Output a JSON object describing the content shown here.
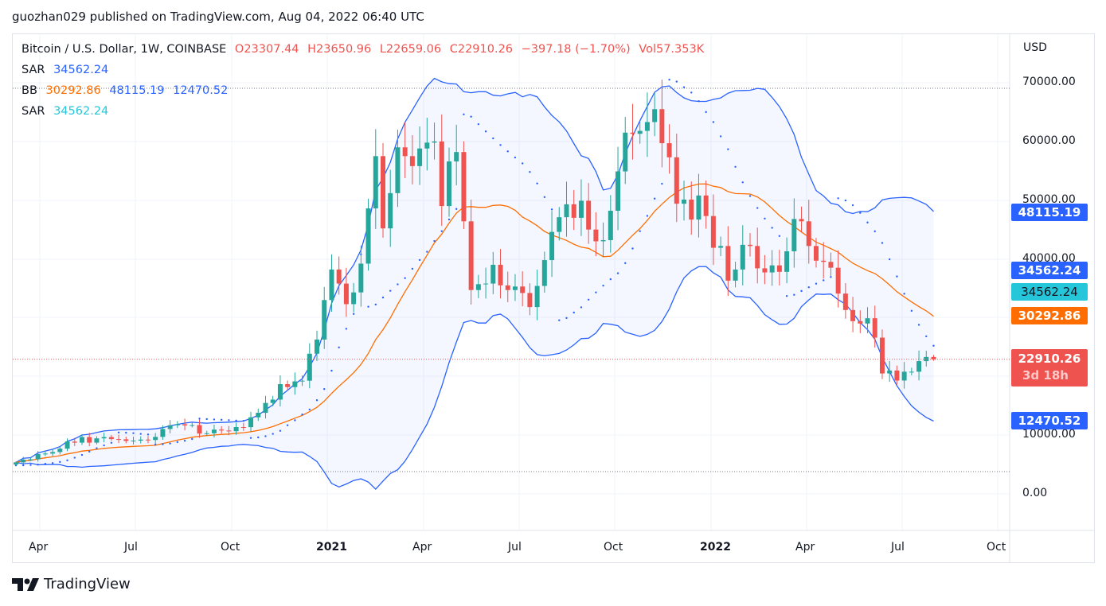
{
  "header": {
    "title": "guozhan029 published on TradingView.com, Aug 04, 2022 06:40 UTC"
  },
  "legend": {
    "symbol": "Bitcoin / U.S. Dollar, 1W, COINBASE",
    "open": "O23307.44",
    "high": "H23650.96",
    "low": "L22659.06",
    "close": "C22910.26",
    "change": "−397.18 (−1.70%)",
    "volume": "Vol57.353K",
    "sar1_label": "SAR",
    "sar1_value": "34562.24",
    "bb_label": "BB",
    "bb_basis": "30292.86",
    "bb_upper": "48115.19",
    "bb_lower": "12470.52",
    "sar2_label": "SAR",
    "sar2_value": "34562.24"
  },
  "price_axis": {
    "currency": "USD",
    "ticks": [
      "70000.00",
      "60000.00",
      "50000.00",
      "40000.00",
      "10000.00",
      "0.00"
    ],
    "badges": {
      "bb_upper": "48115.19",
      "sar1": "34562.24",
      "sar2": "34562.24",
      "bb_basis": "30292.86",
      "last": "22910.26",
      "countdown": "3d 18h",
      "bb_lower": "12470.52"
    }
  },
  "time_axis": {
    "ticks": [
      "Apr",
      "Jul",
      "Oct",
      "2021",
      "Apr",
      "Jul",
      "Oct",
      "2022",
      "Apr",
      "Jul",
      "Oct"
    ]
  },
  "footer": {
    "brand": "TradingView"
  },
  "colors": {
    "up": "#26a69a",
    "down": "#ef5350",
    "bb_band": "#2962ff",
    "bb_basis": "#ff6d00",
    "sar": "#2962ff",
    "last_price": "#ef5350"
  },
  "chart_data": {
    "type": "candlestick",
    "title": "Bitcoin / U.S. Dollar, 1W, COINBASE",
    "ylabel": "USD",
    "ylim": [
      -6000,
      78000
    ],
    "start_week": "2020-03-09",
    "interval": "1W",
    "indicators": [
      "Bollinger Bands (20, 2)",
      "Parabolic SAR",
      "Parabolic SAR"
    ],
    "closes": [
      5360,
      5830,
      5880,
      6770,
      6860,
      7120,
      7690,
      8900,
      8720,
      9670,
      8720,
      9450,
      9670,
      9330,
      9290,
      9010,
      9070,
      9240,
      9170,
      9700,
      11050,
      11680,
      11860,
      11650,
      11710,
      10260,
      10320,
      10940,
      10780,
      10670,
      11370,
      11360,
      13030,
      13800,
      15480,
      16050,
      18680,
      18180,
      19150,
      19270,
      23860,
      26270,
      33000,
      38200,
      35800,
      32300,
      34300,
      39200,
      48600,
      57500,
      45200,
      51200,
      59000,
      57500,
      55800,
      58800,
      59800,
      60000,
      49000,
      56600,
      58200,
      46400,
      34700,
      35700,
      35800,
      39000,
      35500,
      34700,
      35300,
      34200,
      31800,
      35400,
      39800,
      44600,
      47100,
      49300,
      47000,
      49900,
      45000,
      43000,
      43200,
      48200,
      54900,
      61500,
      61300,
      61800,
      63300,
      65500,
      59700,
      57300,
      49400,
      50100,
      46700,
      50800,
      47300,
      41900,
      42200,
      36300,
      38200,
      42400,
      42200,
      38400,
      37700,
      38900,
      37800,
      41300,
      46800,
      46400,
      42200,
      39700,
      39500,
      38500,
      34100,
      31300,
      29400,
      29000,
      29900,
      26600,
      20500,
      21000,
      19300,
      20800,
      20800,
      22600,
      23307.44,
      22910.26
    ],
    "last_candle": {
      "open": 23307.44,
      "high": 23650.96,
      "low": 22659.06,
      "close": 22910.26
    }
  }
}
